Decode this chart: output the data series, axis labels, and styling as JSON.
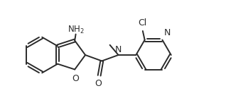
{
  "bg_color": "#ffffff",
  "line_color": "#2a2a2a",
  "lw": 1.4,
  "font_size": 9,
  "figsize": [
    3.18,
    1.56
  ],
  "dpi": 100,
  "xlim": [
    0,
    10.5
  ],
  "ylim": [
    0,
    5.5
  ]
}
